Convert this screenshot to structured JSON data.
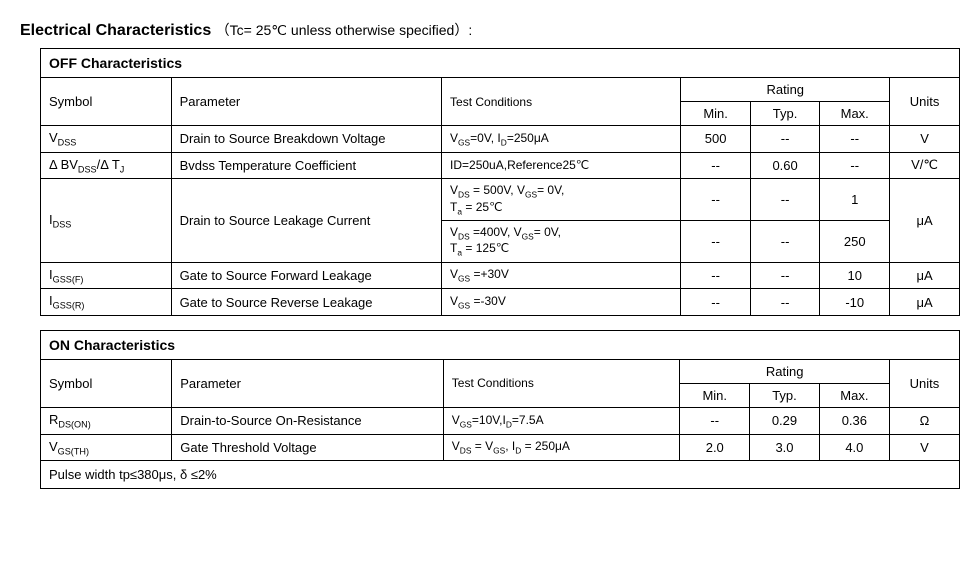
{
  "title": "Electrical Characteristics",
  "title_cond": "（Tc= 25℃  unless otherwise specified）:",
  "off": {
    "section": "OFF Characteristics",
    "head_symbol": "Symbol",
    "head_param": "Parameter",
    "head_tc": "Test Conditions",
    "head_rating": "Rating",
    "head_min": "Min.",
    "head_typ": "Typ.",
    "head_max": "Max.",
    "head_units": "Units",
    "rows": {
      "r0": {
        "sym_html": "V<sub>DSS</sub>",
        "param": "Drain to Source Breakdown Voltage",
        "tc_html": "V<sub>GS</sub>=0V, I<sub>D</sub>=250μA",
        "min": "500",
        "typ": "--",
        "max": "--",
        "units": "V"
      },
      "r1": {
        "sym_html": "Δ BV<sub>DSS</sub>/Δ T<sub>J</sub>",
        "param": "Bvdss Temperature Coefficient",
        "tc_html": "ID=250uA,Reference25℃",
        "min": "--",
        "typ": "0.60",
        "max": "--",
        "units": "V/℃"
      },
      "r2": {
        "sym_html": "I<sub>DSS</sub>",
        "param": "Drain to Source Leakage Current",
        "tc_a_html": "V<sub>DS</sub> = 500V, V<sub>GS</sub>= 0V,<br>T<sub>a</sub> = 25℃",
        "min_a": "--",
        "typ_a": "--",
        "max_a": "1",
        "tc_b_html": "V<sub>DS</sub> =400V, V<sub>GS</sub>= 0V,<br>T<sub>a</sub> = 125℃",
        "min_b": "--",
        "typ_b": "--",
        "max_b": "250",
        "units": "μA"
      },
      "r3": {
        "sym_html": "I<sub>GSS(F)</sub>",
        "param": "Gate to Source Forward Leakage",
        "tc_html": "V<sub>GS</sub> =+30V",
        "min": "--",
        "typ": "--",
        "max": "10",
        "units": "μA"
      },
      "r4": {
        "sym_html": "I<sub>GSS(R)</sub>",
        "param": "Gate to Source Reverse Leakage",
        "tc_html": "V<sub>GS</sub> =-30V",
        "min": "--",
        "typ": "--",
        "max": "-10",
        "units": "μA"
      }
    }
  },
  "on": {
    "section": "ON Characteristics",
    "head_symbol": "Symbol",
    "head_param": "Parameter",
    "head_tc": "Test Conditions",
    "head_rating": "Rating",
    "head_min": "Min.",
    "head_typ": "Typ.",
    "head_max": "Max.",
    "head_units": "Units",
    "rows": {
      "r0": {
        "sym_html": "R<sub>DS(ON)</sub>",
        "param": "Drain-to-Source On-Resistance",
        "tc_html": "V<sub>GS</sub>=10V,I<sub>D</sub>=7.5A",
        "min": "--",
        "typ": "0.29",
        "max": "0.36",
        "units": "Ω"
      },
      "r1": {
        "sym_html": "V<sub>GS(TH)</sub>",
        "param": "Gate Threshold Voltage",
        "tc_html": "V<sub>DS</sub> = V<sub>GS</sub>, I<sub>D</sub> = 250μA",
        "min": "2.0",
        "typ": "3.0",
        "max": "4.0",
        "units": "V"
      }
    },
    "footnote": "Pulse width tp≤380μs, δ ≤2%"
  }
}
